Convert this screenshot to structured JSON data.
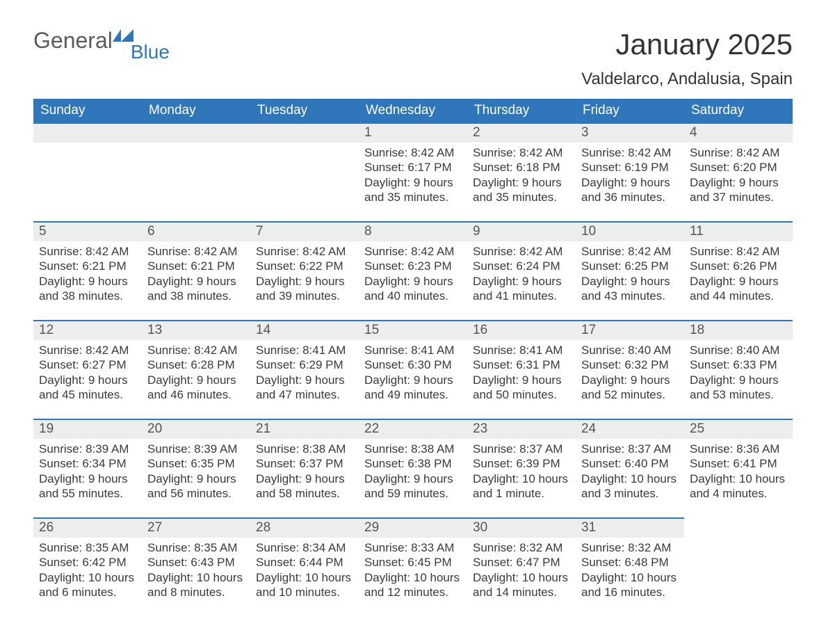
{
  "logo": {
    "word1": "General",
    "word2": "Blue",
    "accent_color": "#2f76bb",
    "text_color": "#5b5b5b"
  },
  "title": "January 2025",
  "location": "Valdelarco, Andalusia, Spain",
  "colors": {
    "header_bg": "#2f76bb",
    "header_text": "#ffffff",
    "daybar_bg": "#ededed",
    "daybar_border": "#2f76bb",
    "body_text": "#3a3a3a",
    "page_bg": "#ffffff"
  },
  "day_headers": [
    "Sunday",
    "Monday",
    "Tuesday",
    "Wednesday",
    "Thursday",
    "Friday",
    "Saturday"
  ],
  "weeks": [
    [
      null,
      null,
      null,
      {
        "n": "1",
        "sunrise": "8:42 AM",
        "sunset": "6:17 PM",
        "daylight": "9 hours and 35 minutes."
      },
      {
        "n": "2",
        "sunrise": "8:42 AM",
        "sunset": "6:18 PM",
        "daylight": "9 hours and 35 minutes."
      },
      {
        "n": "3",
        "sunrise": "8:42 AM",
        "sunset": "6:19 PM",
        "daylight": "9 hours and 36 minutes."
      },
      {
        "n": "4",
        "sunrise": "8:42 AM",
        "sunset": "6:20 PM",
        "daylight": "9 hours and 37 minutes."
      }
    ],
    [
      {
        "n": "5",
        "sunrise": "8:42 AM",
        "sunset": "6:21 PM",
        "daylight": "9 hours and 38 minutes."
      },
      {
        "n": "6",
        "sunrise": "8:42 AM",
        "sunset": "6:21 PM",
        "daylight": "9 hours and 38 minutes."
      },
      {
        "n": "7",
        "sunrise": "8:42 AM",
        "sunset": "6:22 PM",
        "daylight": "9 hours and 39 minutes."
      },
      {
        "n": "8",
        "sunrise": "8:42 AM",
        "sunset": "6:23 PM",
        "daylight": "9 hours and 40 minutes."
      },
      {
        "n": "9",
        "sunrise": "8:42 AM",
        "sunset": "6:24 PM",
        "daylight": "9 hours and 41 minutes."
      },
      {
        "n": "10",
        "sunrise": "8:42 AM",
        "sunset": "6:25 PM",
        "daylight": "9 hours and 43 minutes."
      },
      {
        "n": "11",
        "sunrise": "8:42 AM",
        "sunset": "6:26 PM",
        "daylight": "9 hours and 44 minutes."
      }
    ],
    [
      {
        "n": "12",
        "sunrise": "8:42 AM",
        "sunset": "6:27 PM",
        "daylight": "9 hours and 45 minutes."
      },
      {
        "n": "13",
        "sunrise": "8:42 AM",
        "sunset": "6:28 PM",
        "daylight": "9 hours and 46 minutes."
      },
      {
        "n": "14",
        "sunrise": "8:41 AM",
        "sunset": "6:29 PM",
        "daylight": "9 hours and 47 minutes."
      },
      {
        "n": "15",
        "sunrise": "8:41 AM",
        "sunset": "6:30 PM",
        "daylight": "9 hours and 49 minutes."
      },
      {
        "n": "16",
        "sunrise": "8:41 AM",
        "sunset": "6:31 PM",
        "daylight": "9 hours and 50 minutes."
      },
      {
        "n": "17",
        "sunrise": "8:40 AM",
        "sunset": "6:32 PM",
        "daylight": "9 hours and 52 minutes."
      },
      {
        "n": "18",
        "sunrise": "8:40 AM",
        "sunset": "6:33 PM",
        "daylight": "9 hours and 53 minutes."
      }
    ],
    [
      {
        "n": "19",
        "sunrise": "8:39 AM",
        "sunset": "6:34 PM",
        "daylight": "9 hours and 55 minutes."
      },
      {
        "n": "20",
        "sunrise": "8:39 AM",
        "sunset": "6:35 PM",
        "daylight": "9 hours and 56 minutes."
      },
      {
        "n": "21",
        "sunrise": "8:38 AM",
        "sunset": "6:37 PM",
        "daylight": "9 hours and 58 minutes."
      },
      {
        "n": "22",
        "sunrise": "8:38 AM",
        "sunset": "6:38 PM",
        "daylight": "9 hours and 59 minutes."
      },
      {
        "n": "23",
        "sunrise": "8:37 AM",
        "sunset": "6:39 PM",
        "daylight": "10 hours and 1 minute."
      },
      {
        "n": "24",
        "sunrise": "8:37 AM",
        "sunset": "6:40 PM",
        "daylight": "10 hours and 3 minutes."
      },
      {
        "n": "25",
        "sunrise": "8:36 AM",
        "sunset": "6:41 PM",
        "daylight": "10 hours and 4 minutes."
      }
    ],
    [
      {
        "n": "26",
        "sunrise": "8:35 AM",
        "sunset": "6:42 PM",
        "daylight": "10 hours and 6 minutes."
      },
      {
        "n": "27",
        "sunrise": "8:35 AM",
        "sunset": "6:43 PM",
        "daylight": "10 hours and 8 minutes."
      },
      {
        "n": "28",
        "sunrise": "8:34 AM",
        "sunset": "6:44 PM",
        "daylight": "10 hours and 10 minutes."
      },
      {
        "n": "29",
        "sunrise": "8:33 AM",
        "sunset": "6:45 PM",
        "daylight": "10 hours and 12 minutes."
      },
      {
        "n": "30",
        "sunrise": "8:32 AM",
        "sunset": "6:47 PM",
        "daylight": "10 hours and 14 minutes."
      },
      {
        "n": "31",
        "sunrise": "8:32 AM",
        "sunset": "6:48 PM",
        "daylight": "10 hours and 16 minutes."
      },
      null
    ]
  ],
  "labels": {
    "sunrise": "Sunrise: ",
    "sunset": "Sunset: ",
    "daylight": "Daylight: "
  }
}
